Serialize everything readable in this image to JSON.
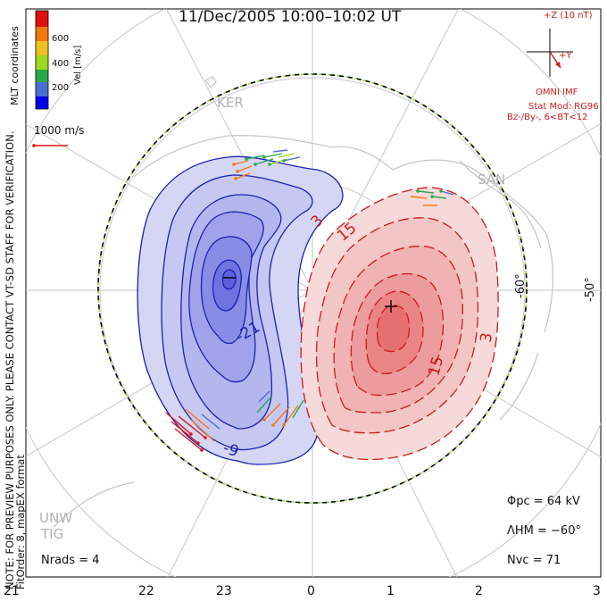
{
  "title": "11/Dec/2005 10:00–10:02 UT",
  "coordinates_label": "MLT coordinates",
  "colorbar": {
    "label": "Vel [m/s]",
    "ticks": [
      "600",
      "400",
      "200"
    ],
    "colors": [
      "#0000ee",
      "#4a6fd0",
      "#2aa84a",
      "#9ed820",
      "#f0c020",
      "#f07a10",
      "#e01010"
    ]
  },
  "reference_vector": "1000 m/s",
  "imf": {
    "z_label": "+Z (10 nT)",
    "y_label": "+Y",
    "source": "OMNI IMF",
    "model": "Stat Mod: RG96",
    "condition": "Bz-/By-, 6<BT<12"
  },
  "preview_note": "NOTE: FOR PREVIEW PURPOSES ONLY. PLEASE CONTACT VT-SD STAFF FOR VERIFICATION.",
  "fit_order": "FitOrder: 8, mapEX format",
  "stations": [
    "KER",
    "SAN",
    "UNW",
    "TIG"
  ],
  "latitude_labels": [
    "-60°",
    "-50°"
  ],
  "contour_labels": [
    "-21",
    "-9",
    "3",
    "15",
    "15",
    "3"
  ],
  "stats": {
    "phi_pc": "Φpc = 64 kV",
    "lambda_hm": "ΛHM = −60°",
    "n_vc": "Nvc = 71",
    "n_rads": "Nrads = 4"
  },
  "mlt_ticks": [
    "21",
    "22",
    "23",
    "0",
    "1",
    "2",
    "3"
  ],
  "colors": {
    "negative_contour": "#1a22b0",
    "positive_contour": "#cc1a1a",
    "negative_fill": "#5e63e0",
    "positive_fill": "#ee6a6a",
    "text_red": "#d01818"
  }
}
